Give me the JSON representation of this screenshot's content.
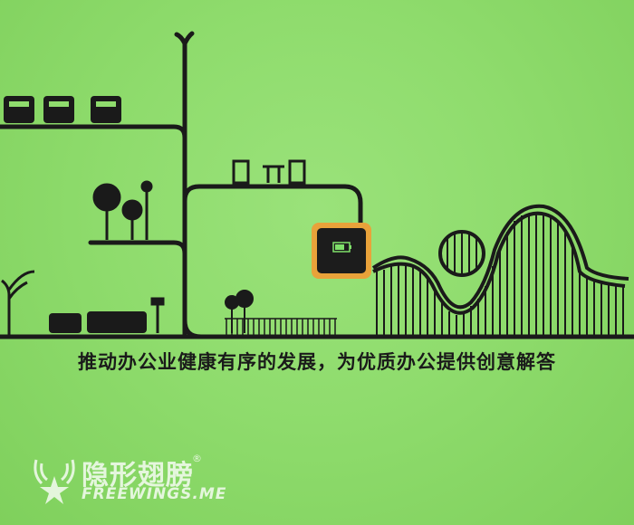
{
  "slogan": "推动办公业健康有序的发展，为优质办公提供创意解答",
  "watermark": {
    "name_cn": "隐形翅膀",
    "name_en": "FREEWINGS.ME",
    "registered": "®"
  },
  "device": {
    "icon": "battery-icon",
    "accent": "#e9a23a"
  },
  "colors": {
    "wall": "#8fdc6d",
    "ink": "#1a1a1a"
  }
}
